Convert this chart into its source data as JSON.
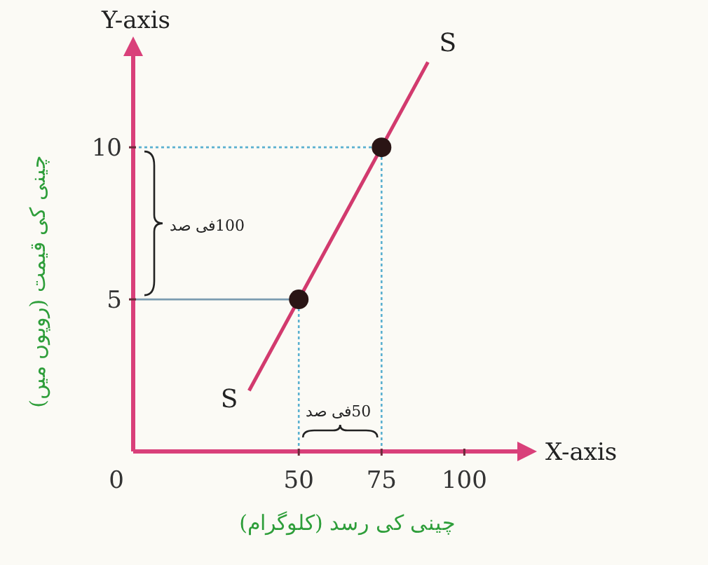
{
  "chart_data": {
    "type": "line",
    "xlabel": "چینی کی رسد (کلوگرام)",
    "ylabel": "چینی کی قیمت (روپوں میں)",
    "xlim": [
      0,
      116
    ],
    "ylim": [
      0,
      13
    ],
    "xticks": [
      0,
      50,
      75,
      100
    ],
    "yticks": [
      5,
      10
    ],
    "series": [
      {
        "color": "#d23a6e",
        "x": [
          35,
          89
        ],
        "values": [
          2,
          12.8
        ],
        "marker": "none"
      },
      {
        "type": "scatter",
        "color": "#2a1515",
        "x": [
          50,
          75
        ],
        "values": [
          5,
          10
        ],
        "marker": "circle"
      }
    ],
    "ref_lines": [
      {
        "axis": "y",
        "value": 5,
        "color": "#7a9bb0",
        "line_style": "solid"
      },
      {
        "axis": "y",
        "value": 10,
        "color": "#5ab0d0",
        "line_style": "dotted"
      },
      {
        "axis": "x",
        "value": 50,
        "color": "#5ab0d0",
        "line_style": "dotted"
      },
      {
        "axis": "x",
        "value": 75,
        "color": "#5ab0d0",
        "line_style": "dotted"
      }
    ],
    "annotations": [
      "Y-axis",
      "X-axis",
      {
        "text": "S",
        "x": 35,
        "y": 2
      },
      {
        "text": "S",
        "x": 89,
        "y": 12.8
      },
      "100فی صد",
      "50فی صد"
    ]
  }
}
